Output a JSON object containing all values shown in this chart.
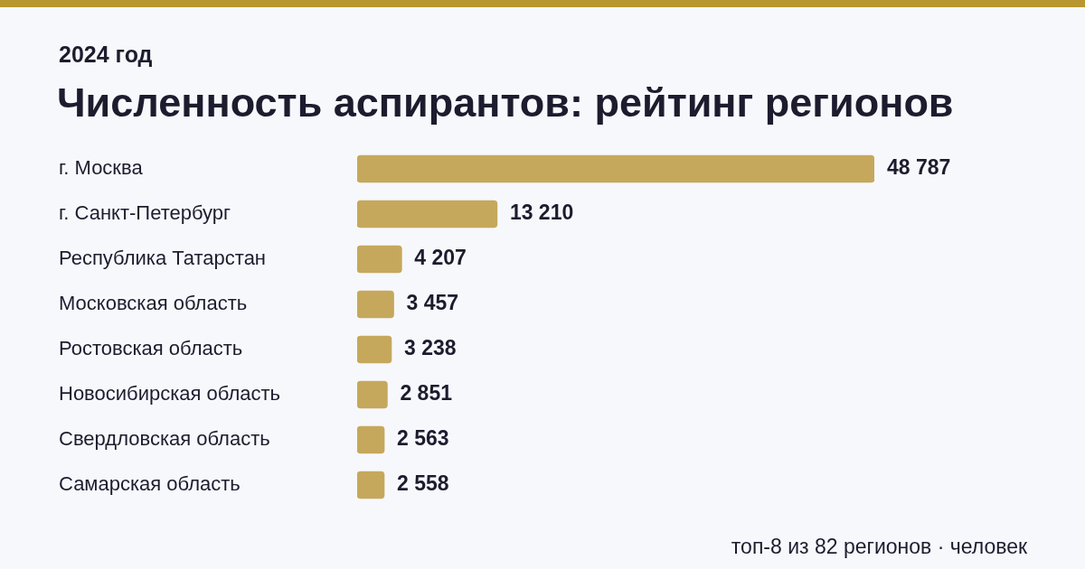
{
  "chart_data": {
    "type": "bar",
    "orientation": "horizontal",
    "title": "Численность аспирантов: рейтинг регионов",
    "subtitle": "2024 год",
    "categories": [
      "г. Москва",
      "г. Санкт-Петербург",
      "Республика Татарстан",
      "Московская область",
      "Ростовская область",
      "Новосибирская область",
      "Свердловская область",
      "Самарская область"
    ],
    "values": [
      48787,
      13210,
      4207,
      3457,
      3238,
      2851,
      2563,
      2558
    ],
    "color": "#c5a85c",
    "data_labels": true,
    "legend": false,
    "annotations": [
      "топ-8 из 82 регионов · человек"
    ]
  }
}
